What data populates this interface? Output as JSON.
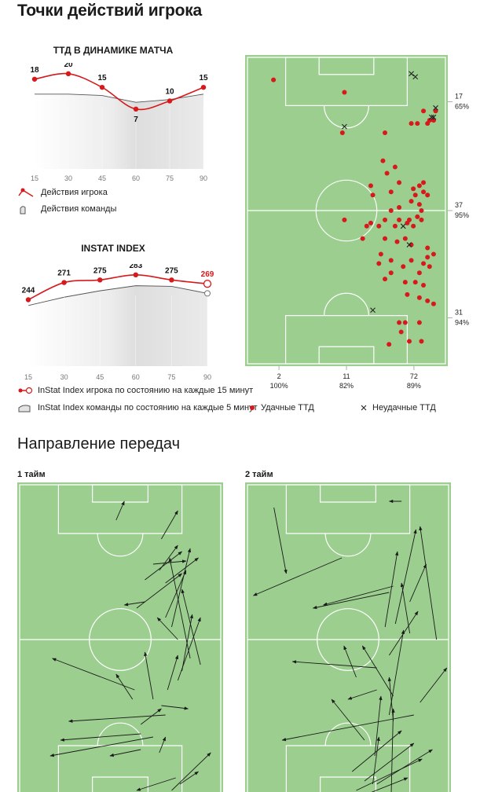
{
  "title": "Точки действий игрока",
  "passes_title": "Направление передач",
  "colors": {
    "red": "#d7191c",
    "pitch": "#9ccf8f",
    "pitch_line": "#ffffff",
    "team_fill": "#e3e3e3",
    "team_line": "#555555"
  },
  "chart_data": [
    {
      "type": "line",
      "title": "ТТД В ДИНАМИКЕ МАТЧА",
      "x": [
        15,
        30,
        45,
        60,
        75,
        90
      ],
      "xlim": [
        15,
        90
      ],
      "series": [
        {
          "name": "Действия игрока",
          "values": [
            18,
            20,
            15,
            7,
            10,
            15
          ]
        },
        {
          "name": "Действия команды",
          "style": "area",
          "values": [
            12.5,
            12.5,
            12.0,
            9.5,
            10.5,
            12.5
          ]
        }
      ]
    },
    {
      "type": "line",
      "title": "INSTAT INDEX",
      "x": [
        15,
        30,
        45,
        60,
        75,
        90
      ],
      "xlim": [
        15,
        90
      ],
      "series": [
        {
          "name": "InStat Index игрока по состоянию на каждые 15 минут",
          "values": [
            244,
            271,
            275,
            283,
            275,
            269
          ]
        },
        {
          "name": "InStat Index команды по состоянию на каждые 5 минут",
          "style": "area",
          "values": [
            235,
            248,
            258,
            266,
            265,
            254
          ]
        }
      ]
    },
    {
      "type": "scatter",
      "title": "",
      "xlim": [
        0,
        1
      ],
      "ylim": [
        0,
        1
      ],
      "legend": [
        "Удачные ТТД",
        "Неудачные ТТД"
      ],
      "zone_labels_right": [
        {
          "count": "17",
          "pct": "65%",
          "at": 0.15
        },
        {
          "count": "37",
          "pct": "95%",
          "at": 0.5
        },
        {
          "count": "31",
          "pct": "94%",
          "at": 0.845
        }
      ],
      "zone_labels_bottom": [
        {
          "count": "2",
          "pct": "100%",
          "at": 0.167
        },
        {
          "count": "11",
          "pct": "82%",
          "at": 0.5
        },
        {
          "count": "72",
          "pct": "89%",
          "at": 0.833
        }
      ],
      "success": [
        [
          0.14,
          0.08
        ],
        [
          0.49,
          0.12
        ],
        [
          0.48,
          0.25
        ],
        [
          0.69,
          0.25
        ],
        [
          0.82,
          0.22
        ],
        [
          0.85,
          0.22
        ],
        [
          0.9,
          0.22
        ],
        [
          0.91,
          0.21
        ],
        [
          0.93,
          0.21
        ],
        [
          0.94,
          0.18
        ],
        [
          0.88,
          0.18
        ],
        [
          0.68,
          0.34
        ],
        [
          0.74,
          0.36
        ],
        [
          0.7,
          0.38
        ],
        [
          0.62,
          0.42
        ],
        [
          0.76,
          0.41
        ],
        [
          0.63,
          0.45
        ],
        [
          0.72,
          0.44
        ],
        [
          0.83,
          0.43
        ],
        [
          0.86,
          0.42
        ],
        [
          0.88,
          0.41
        ],
        [
          0.84,
          0.45
        ],
        [
          0.88,
          0.44
        ],
        [
          0.9,
          0.45
        ],
        [
          0.82,
          0.47
        ],
        [
          0.86,
          0.48
        ],
        [
          0.76,
          0.49
        ],
        [
          0.72,
          0.5
        ],
        [
          0.87,
          0.5
        ],
        [
          0.69,
          0.53
        ],
        [
          0.76,
          0.53
        ],
        [
          0.81,
          0.53
        ],
        [
          0.85,
          0.52
        ],
        [
          0.87,
          0.53
        ],
        [
          0.62,
          0.54
        ],
        [
          0.66,
          0.55
        ],
        [
          0.8,
          0.54
        ],
        [
          0.83,
          0.55
        ],
        [
          0.74,
          0.55
        ],
        [
          0.49,
          0.53
        ],
        [
          0.6,
          0.55
        ],
        [
          0.75,
          0.6
        ],
        [
          0.82,
          0.61
        ],
        [
          0.58,
          0.59
        ],
        [
          0.69,
          0.59
        ],
        [
          0.79,
          0.59
        ],
        [
          0.9,
          0.62
        ],
        [
          0.67,
          0.64
        ],
        [
          0.72,
          0.66
        ],
        [
          0.82,
          0.66
        ],
        [
          0.9,
          0.65
        ],
        [
          0.88,
          0.67
        ],
        [
          0.93,
          0.64
        ],
        [
          0.91,
          0.68
        ],
        [
          0.66,
          0.67
        ],
        [
          0.78,
          0.68
        ],
        [
          0.72,
          0.7
        ],
        [
          0.86,
          0.7
        ],
        [
          0.69,
          0.72
        ],
        [
          0.79,
          0.73
        ],
        [
          0.84,
          0.73
        ],
        [
          0.88,
          0.74
        ],
        [
          0.8,
          0.77
        ],
        [
          0.86,
          0.78
        ],
        [
          0.9,
          0.79
        ],
        [
          0.93,
          0.8
        ],
        [
          0.76,
          0.86
        ],
        [
          0.79,
          0.86
        ],
        [
          0.86,
          0.86
        ],
        [
          0.77,
          0.89
        ],
        [
          0.81,
          0.92
        ],
        [
          0.71,
          0.93
        ],
        [
          0.87,
          0.92
        ]
      ],
      "fail": [
        [
          0.82,
          0.06
        ],
        [
          0.84,
          0.07
        ],
        [
          0.49,
          0.23
        ],
        [
          0.93,
          0.2
        ],
        [
          0.92,
          0.2
        ],
        [
          0.94,
          0.17
        ],
        [
          0.78,
          0.55
        ],
        [
          0.81,
          0.61
        ],
        [
          0.63,
          0.82
        ]
      ]
    },
    {
      "type": "pass-map",
      "title": "1 тайм",
      "xlim": [
        0,
        1
      ],
      "ylim": [
        0,
        1
      ],
      "passes": [
        [
          0.48,
          0.12,
          0.52,
          0.06
        ],
        [
          0.7,
          0.18,
          0.78,
          0.09
        ],
        [
          0.66,
          0.26,
          0.82,
          0.25
        ],
        [
          0.69,
          0.28,
          0.78,
          0.2
        ],
        [
          0.62,
          0.31,
          0.8,
          0.22
        ],
        [
          0.72,
          0.32,
          0.88,
          0.24
        ],
        [
          0.58,
          0.4,
          0.8,
          0.29
        ],
        [
          0.62,
          0.38,
          0.52,
          0.39
        ],
        [
          0.72,
          0.43,
          0.82,
          0.28
        ],
        [
          0.75,
          0.46,
          0.84,
          0.21
        ],
        [
          0.78,
          0.5,
          0.68,
          0.43
        ],
        [
          0.84,
          0.56,
          0.74,
          0.24
        ],
        [
          0.89,
          0.58,
          0.8,
          0.34
        ],
        [
          0.8,
          0.6,
          0.85,
          0.42
        ],
        [
          0.78,
          0.63,
          0.89,
          0.43
        ],
        [
          0.73,
          0.66,
          0.78,
          0.55
        ],
        [
          0.66,
          0.69,
          0.62,
          0.54
        ],
        [
          0.57,
          0.66,
          0.17,
          0.56
        ],
        [
          0.56,
          0.69,
          0.48,
          0.61
        ],
        [
          0.7,
          0.71,
          0.83,
          0.72
        ],
        [
          0.72,
          0.74,
          0.25,
          0.76
        ],
        [
          0.6,
          0.77,
          0.7,
          0.72
        ],
        [
          0.6,
          0.8,
          0.21,
          0.82
        ],
        [
          0.66,
          0.81,
          0.16,
          0.87
        ],
        [
          0.6,
          0.85,
          0.45,
          0.87
        ],
        [
          0.69,
          0.86,
          0.72,
          0.81
        ],
        [
          0.77,
          0.94,
          0.58,
          0.98
        ],
        [
          0.79,
          0.96,
          0.88,
          0.92
        ],
        [
          0.75,
          0.98,
          0.94,
          0.86
        ]
      ]
    },
    {
      "type": "pass-map",
      "title": "2 тайм",
      "xlim": [
        0,
        1
      ],
      "ylim": [
        0,
        1
      ],
      "passes": [
        [
          0.14,
          0.08,
          0.2,
          0.29
        ],
        [
          0.76,
          0.06,
          0.7,
          0.06
        ],
        [
          0.47,
          0.24,
          0.04,
          0.36
        ],
        [
          0.72,
          0.33,
          0.38,
          0.39
        ],
        [
          0.7,
          0.35,
          0.33,
          0.4
        ],
        [
          0.8,
          0.38,
          0.88,
          0.26
        ],
        [
          0.73,
          0.45,
          0.83,
          0.15
        ],
        [
          0.68,
          0.46,
          0.74,
          0.22
        ],
        [
          0.8,
          0.48,
          0.76,
          0.32
        ],
        [
          0.93,
          0.5,
          0.85,
          0.14
        ],
        [
          0.7,
          0.55,
          0.84,
          0.41
        ],
        [
          0.64,
          0.59,
          0.23,
          0.57
        ],
        [
          0.54,
          0.62,
          0.48,
          0.52
        ],
        [
          0.64,
          0.66,
          0.5,
          0.69
        ],
        [
          0.72,
          0.68,
          0.57,
          0.52
        ],
        [
          0.7,
          0.74,
          0.77,
          0.47
        ],
        [
          0.82,
          0.74,
          0.18,
          0.82
        ],
        [
          0.72,
          0.76,
          0.7,
          0.62
        ],
        [
          0.85,
          0.7,
          0.98,
          0.59
        ],
        [
          0.58,
          0.82,
          0.42,
          0.69
        ],
        [
          0.63,
          0.87,
          0.66,
          0.68
        ],
        [
          0.52,
          0.92,
          0.76,
          0.79
        ],
        [
          0.58,
          0.95,
          0.82,
          0.83
        ],
        [
          0.54,
          0.98,
          0.86,
          0.88
        ],
        [
          0.64,
          0.96,
          0.91,
          0.85
        ],
        [
          0.71,
          0.99,
          0.72,
          0.72
        ],
        [
          0.56,
          1.0,
          0.79,
          0.94
        ],
        [
          0.62,
          0.96,
          0.65,
          0.81
        ]
      ]
    }
  ]
}
